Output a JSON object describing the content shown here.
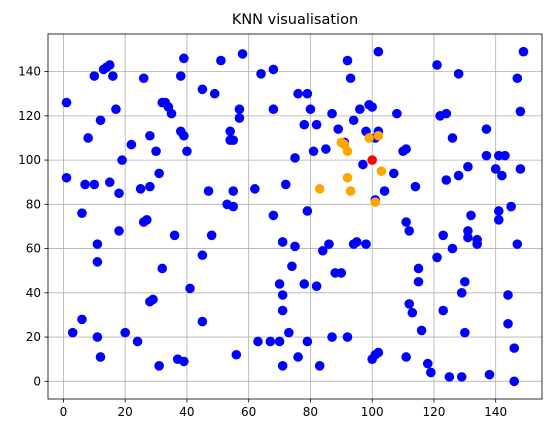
{
  "chart_data": {
    "type": "scatter",
    "title": "KNN visualisation",
    "xlabel": "",
    "ylabel": "",
    "xlim": [
      -5,
      155
    ],
    "ylim": [
      -8,
      157
    ],
    "xticks": [
      0,
      20,
      40,
      60,
      80,
      100,
      120,
      140
    ],
    "yticks": [
      0,
      20,
      40,
      60,
      80,
      100,
      120,
      140
    ],
    "grid": true,
    "colors": {
      "data": "#0000ff",
      "neighbors": "#ffa500",
      "query": "#ff0000"
    },
    "series": [
      {
        "color": "#0000ff",
        "points": [
          [
            1,
            126
          ],
          [
            1,
            92
          ],
          [
            3,
            22
          ],
          [
            6,
            76
          ],
          [
            6,
            28
          ],
          [
            7,
            89
          ],
          [
            8,
            110
          ],
          [
            10,
            138
          ],
          [
            10,
            89
          ],
          [
            11,
            62
          ],
          [
            11,
            54
          ],
          [
            11,
            20
          ],
          [
            12,
            11
          ],
          [
            12,
            118
          ],
          [
            13,
            141
          ],
          [
            14,
            142
          ],
          [
            15,
            143
          ],
          [
            15,
            90
          ],
          [
            16,
            138
          ],
          [
            17,
            123
          ],
          [
            18,
            68
          ],
          [
            18,
            85
          ],
          [
            19,
            100
          ],
          [
            20,
            22
          ],
          [
            22,
            107
          ],
          [
            24,
            18
          ],
          [
            25,
            87
          ],
          [
            26,
            137
          ],
          [
            26,
            72
          ],
          [
            27,
            73
          ],
          [
            28,
            111
          ],
          [
            28,
            88
          ],
          [
            28,
            36
          ],
          [
            29,
            37
          ],
          [
            30,
            104
          ],
          [
            31,
            7
          ],
          [
            31,
            94
          ],
          [
            32,
            126
          ],
          [
            32,
            51
          ],
          [
            33,
            126
          ],
          [
            34,
            124
          ],
          [
            35,
            121
          ],
          [
            36,
            66
          ],
          [
            37,
            10
          ],
          [
            38,
            138
          ],
          [
            38,
            113
          ],
          [
            39,
            111
          ],
          [
            39,
            146
          ],
          [
            39,
            9
          ],
          [
            40,
            104
          ],
          [
            41,
            42
          ],
          [
            45,
            132
          ],
          [
            45,
            57
          ],
          [
            45,
            27
          ],
          [
            47,
            86
          ],
          [
            48,
            66
          ],
          [
            49,
            130
          ],
          [
            51,
            145
          ],
          [
            53,
            80
          ],
          [
            54,
            113
          ],
          [
            54,
            109
          ],
          [
            55,
            86
          ],
          [
            55,
            79
          ],
          [
            55,
            109
          ],
          [
            56,
            12
          ],
          [
            57,
            123
          ],
          [
            57,
            119
          ],
          [
            58,
            148
          ],
          [
            62,
            87
          ],
          [
            63,
            18
          ],
          [
            64,
            139
          ],
          [
            67,
            18
          ],
          [
            68,
            141
          ],
          [
            68,
            123
          ],
          [
            68,
            75
          ],
          [
            70,
            18
          ],
          [
            70,
            44
          ],
          [
            71,
            39
          ],
          [
            71,
            32
          ],
          [
            71,
            63
          ],
          [
            71,
            7
          ],
          [
            72,
            89
          ],
          [
            73,
            22
          ],
          [
            74,
            52
          ],
          [
            75,
            61
          ],
          [
            75,
            101
          ],
          [
            76,
            130
          ],
          [
            76,
            11
          ],
          [
            78,
            116
          ],
          [
            78,
            44
          ],
          [
            79,
            18
          ],
          [
            79,
            77
          ],
          [
            79,
            130
          ],
          [
            80,
            123
          ],
          [
            81,
            104
          ],
          [
            82,
            116
          ],
          [
            82,
            43
          ],
          [
            83,
            7
          ],
          [
            84,
            59
          ],
          [
            85,
            105
          ],
          [
            86,
            62
          ],
          [
            87,
            121
          ],
          [
            87,
            20
          ],
          [
            88,
            49
          ],
          [
            89,
            114
          ],
          [
            90,
            49
          ],
          [
            91,
            108
          ],
          [
            92,
            145
          ],
          [
            92,
            20
          ],
          [
            93,
            137
          ],
          [
            94,
            62
          ],
          [
            94,
            118
          ],
          [
            95,
            63
          ],
          [
            96,
            123
          ],
          [
            97,
            98
          ],
          [
            98,
            113
          ],
          [
            98,
            62
          ],
          [
            99,
            125
          ],
          [
            100,
            10
          ],
          [
            100,
            124
          ],
          [
            101,
            12
          ],
          [
            101,
            110
          ],
          [
            101,
            82
          ],
          [
            102,
            149
          ],
          [
            102,
            13
          ],
          [
            102,
            113
          ],
          [
            104,
            86
          ],
          [
            107,
            94
          ],
          [
            108,
            121
          ],
          [
            110,
            104
          ],
          [
            111,
            11
          ],
          [
            111,
            72
          ],
          [
            111,
            105
          ],
          [
            112,
            68
          ],
          [
            112,
            35
          ],
          [
            113,
            31
          ],
          [
            114,
            88
          ],
          [
            115,
            51
          ],
          [
            115,
            45
          ],
          [
            116,
            23
          ],
          [
            118,
            8
          ],
          [
            119,
            4
          ],
          [
            121,
            143
          ],
          [
            121,
            56
          ],
          [
            122,
            120
          ],
          [
            123,
            66
          ],
          [
            123,
            32
          ],
          [
            124,
            121
          ],
          [
            124,
            91
          ],
          [
            125,
            2
          ],
          [
            126,
            110
          ],
          [
            126,
            60
          ],
          [
            128,
            93
          ],
          [
            128,
            139
          ],
          [
            129,
            2
          ],
          [
            129,
            40
          ],
          [
            130,
            45
          ],
          [
            130,
            22
          ],
          [
            131,
            97
          ],
          [
            131,
            68
          ],
          [
            131,
            65
          ],
          [
            132,
            75
          ],
          [
            134,
            64
          ],
          [
            134,
            62
          ],
          [
            137,
            114
          ],
          [
            137,
            102
          ],
          [
            138,
            3
          ],
          [
            140,
            96
          ],
          [
            141,
            102
          ],
          [
            141,
            77
          ],
          [
            141,
            73
          ],
          [
            142,
            93
          ],
          [
            143,
            102
          ],
          [
            144,
            39
          ],
          [
            144,
            26
          ],
          [
            145,
            79
          ],
          [
            146,
            15
          ],
          [
            146,
            0
          ],
          [
            147,
            137
          ],
          [
            147,
            62
          ],
          [
            148,
            122
          ],
          [
            148,
            96
          ],
          [
            149,
            149
          ]
        ]
      },
      {
        "color": "#ffa500",
        "points": [
          [
            83,
            87
          ],
          [
            90,
            108
          ],
          [
            91,
            107
          ],
          [
            92,
            92
          ],
          [
            92,
            104
          ],
          [
            93,
            86
          ],
          [
            99,
            110
          ],
          [
            101,
            81
          ],
          [
            102,
            111
          ],
          [
            103,
            95
          ]
        ]
      },
      {
        "color": "#ff0000",
        "points": [
          [
            100,
            100
          ]
        ]
      }
    ]
  }
}
